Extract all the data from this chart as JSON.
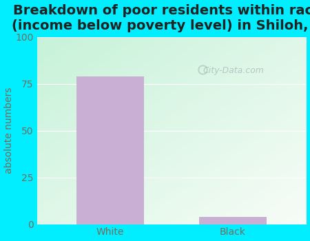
{
  "categories": [
    "White",
    "Black"
  ],
  "values": [
    79,
    4
  ],
  "bar_color": "#c9afd4",
  "title": "Breakdown of poor residents within races\n(income below poverty level) in Shiloh, AL",
  "ylabel": "absolute numbers",
  "ylim": [
    0,
    100
  ],
  "yticks": [
    0,
    25,
    50,
    75,
    100
  ],
  "background_outer": "#00eeff",
  "title_fontsize": 14,
  "label_fontsize": 10,
  "tick_fontsize": 10,
  "bar_width": 0.55,
  "watermark": "City-Data.com",
  "grid_color": "#ccddcc",
  "tick_color": "#7a6a5a",
  "title_color": "#222222"
}
